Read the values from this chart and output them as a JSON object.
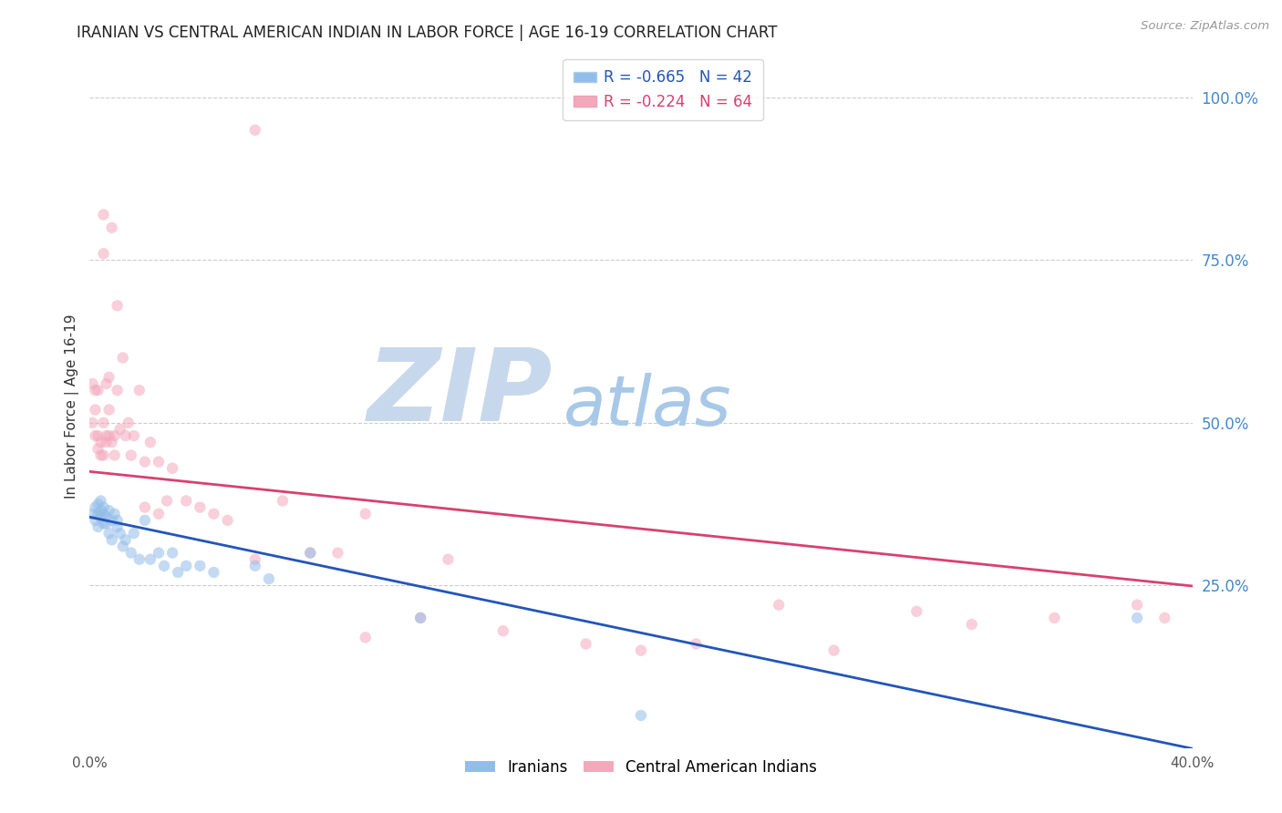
{
  "title": "IRANIAN VS CENTRAL AMERICAN INDIAN IN LABOR FORCE | AGE 16-19 CORRELATION CHART",
  "source": "Source: ZipAtlas.com",
  "ylabel": "In Labor Force | Age 16-19",
  "right_ytick_labels": [
    "100.0%",
    "75.0%",
    "50.0%",
    "25.0%"
  ],
  "right_ytick_values": [
    1.0,
    0.75,
    0.5,
    0.25
  ],
  "xlim": [
    0.0,
    0.4
  ],
  "ylim": [
    0.0,
    1.05
  ],
  "xtick_labels": [
    "0.0%",
    "",
    "",
    "",
    "40.0%"
  ],
  "xtick_values": [
    0.0,
    0.1,
    0.2,
    0.3,
    0.4
  ],
  "legend_iranians": "Iranians",
  "legend_central": "Central American Indians",
  "blue_color": "#92bde8",
  "pink_color": "#f4a8bc",
  "blue_line_color": "#2255bb",
  "pink_line_color": "#d94070",
  "title_color": "#222222",
  "right_label_color": "#4488cc",
  "source_color": "#999999",
  "watermark_zip_color": "#c8d8ec",
  "watermark_atlas_color": "#a8c8e8",
  "blue_R": -0.665,
  "blue_N": 42,
  "pink_R": -0.224,
  "pink_N": 64,
  "blue_intercept": 0.355,
  "blue_slope": -0.89,
  "pink_intercept": 0.425,
  "pink_slope": -0.44,
  "iranians_x": [
    0.001,
    0.002,
    0.002,
    0.003,
    0.003,
    0.003,
    0.004,
    0.004,
    0.004,
    0.005,
    0.005,
    0.005,
    0.006,
    0.006,
    0.007,
    0.007,
    0.008,
    0.008,
    0.009,
    0.01,
    0.01,
    0.011,
    0.012,
    0.013,
    0.015,
    0.016,
    0.018,
    0.02,
    0.022,
    0.025,
    0.027,
    0.03,
    0.032,
    0.035,
    0.04,
    0.045,
    0.06,
    0.065,
    0.08,
    0.12,
    0.2,
    0.38
  ],
  "iranians_y": [
    0.36,
    0.35,
    0.37,
    0.34,
    0.36,
    0.375,
    0.355,
    0.365,
    0.38,
    0.345,
    0.36,
    0.37,
    0.355,
    0.345,
    0.365,
    0.33,
    0.35,
    0.32,
    0.36,
    0.35,
    0.34,
    0.33,
    0.31,
    0.32,
    0.3,
    0.33,
    0.29,
    0.35,
    0.29,
    0.3,
    0.28,
    0.3,
    0.27,
    0.28,
    0.28,
    0.27,
    0.28,
    0.26,
    0.3,
    0.2,
    0.05,
    0.2
  ],
  "central_x": [
    0.001,
    0.001,
    0.002,
    0.002,
    0.002,
    0.003,
    0.003,
    0.003,
    0.004,
    0.004,
    0.005,
    0.005,
    0.005,
    0.005,
    0.006,
    0.006,
    0.006,
    0.007,
    0.007,
    0.007,
    0.008,
    0.008,
    0.009,
    0.009,
    0.01,
    0.01,
    0.011,
    0.012,
    0.013,
    0.014,
    0.015,
    0.016,
    0.018,
    0.02,
    0.022,
    0.025,
    0.028,
    0.03,
    0.035,
    0.04,
    0.045,
    0.05,
    0.06,
    0.07,
    0.08,
    0.09,
    0.1,
    0.12,
    0.15,
    0.18,
    0.2,
    0.22,
    0.25,
    0.27,
    0.3,
    0.32,
    0.35,
    0.38,
    0.39,
    0.13,
    0.02,
    0.025,
    0.06,
    0.1
  ],
  "central_y": [
    0.56,
    0.5,
    0.48,
    0.55,
    0.52,
    0.46,
    0.48,
    0.55,
    0.45,
    0.47,
    0.82,
    0.76,
    0.5,
    0.45,
    0.56,
    0.48,
    0.47,
    0.48,
    0.52,
    0.57,
    0.47,
    0.8,
    0.48,
    0.45,
    0.68,
    0.55,
    0.49,
    0.6,
    0.48,
    0.5,
    0.45,
    0.48,
    0.55,
    0.44,
    0.47,
    0.44,
    0.38,
    0.43,
    0.38,
    0.37,
    0.36,
    0.35,
    0.95,
    0.38,
    0.3,
    0.3,
    0.36,
    0.2,
    0.18,
    0.16,
    0.15,
    0.16,
    0.22,
    0.15,
    0.21,
    0.19,
    0.2,
    0.22,
    0.2,
    0.29,
    0.37,
    0.36,
    0.29,
    0.17
  ],
  "marker_size": 80,
  "marker_alpha": 0.55,
  "grid_color": "#cccccc",
  "bg_color": "#ffffff"
}
